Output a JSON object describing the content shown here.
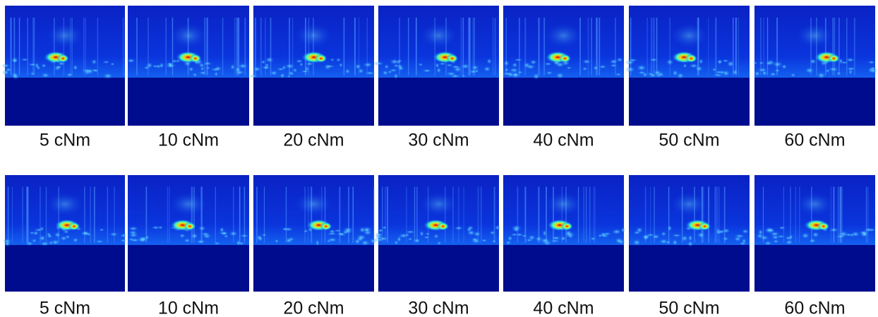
{
  "rows": [
    {
      "panels": [
        {
          "label": "5 cNm"
        },
        {
          "label": "10 cNm"
        },
        {
          "label": "20 cNm"
        },
        {
          "label": "30 cNm"
        },
        {
          "label": "40 cNm"
        },
        {
          "label": "50 cNm"
        },
        {
          "label": "60 cNm"
        }
      ]
    },
    {
      "panels": [
        {
          "label": "5 cNm"
        },
        {
          "label": "10 cNm"
        },
        {
          "label": "20 cNm"
        },
        {
          "label": "30 cNm"
        },
        {
          "label": "40 cNm"
        },
        {
          "label": "50 cNm"
        },
        {
          "label": "60 cNm"
        }
      ]
    }
  ]
}
